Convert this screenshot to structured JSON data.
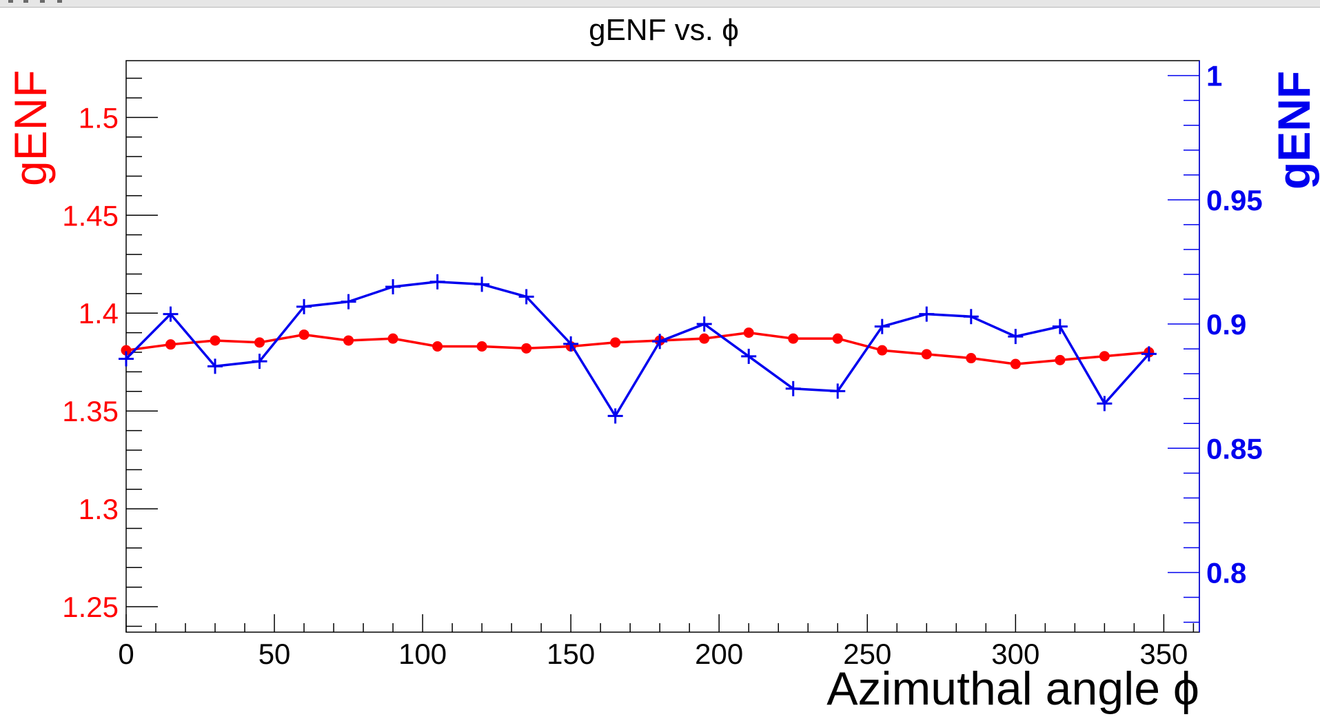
{
  "chart_data": {
    "type": "line",
    "title": "gENF vs. ϕ",
    "xlabel": "Azimuthal angle ϕ",
    "ylabel_left": "gENF",
    "ylabel_right": "gENF",
    "xlim": [
      0,
      362
    ],
    "ylim_left": [
      1.237,
      1.529
    ],
    "ylim_right": [
      0.776,
      1.006
    ],
    "x_ticks": [
      0,
      50,
      100,
      150,
      200,
      250,
      300,
      350
    ],
    "y_ticks_left": [
      1.25,
      1.3,
      1.35,
      1.4,
      1.45,
      1.5
    ],
    "y_ticks_right": [
      0.8,
      0.85,
      0.9,
      0.95,
      1
    ],
    "grid": false,
    "colors": {
      "left": "#ff0000",
      "right": "#0000ee",
      "axis": "#000000"
    },
    "series": [
      {
        "axis": "left",
        "marker": "circle",
        "x": [
          0,
          15,
          30,
          45,
          60,
          75,
          90,
          105,
          120,
          135,
          150,
          165,
          180,
          195,
          210,
          225,
          240,
          255,
          270,
          285,
          300,
          315,
          330,
          345
        ],
        "values": [
          1.381,
          1.384,
          1.386,
          1.385,
          1.389,
          1.386,
          1.387,
          1.383,
          1.383,
          1.382,
          1.383,
          1.385,
          1.386,
          1.387,
          1.39,
          1.387,
          1.387,
          1.381,
          1.379,
          1.377,
          1.374,
          1.376,
          1.378,
          1.38
        ]
      },
      {
        "axis": "right",
        "marker": "plus",
        "x": [
          0,
          15,
          30,
          45,
          60,
          75,
          90,
          105,
          120,
          135,
          150,
          165,
          180,
          195,
          210,
          225,
          240,
          255,
          270,
          285,
          300,
          315,
          330,
          345
        ],
        "values": [
          0.886,
          0.904,
          0.883,
          0.885,
          0.907,
          0.909,
          0.915,
          0.917,
          0.916,
          0.911,
          0.892,
          0.863,
          0.893,
          0.9,
          0.887,
          0.874,
          0.873,
          0.899,
          0.904,
          0.903,
          0.895,
          0.899,
          0.868,
          0.888
        ]
      }
    ]
  }
}
